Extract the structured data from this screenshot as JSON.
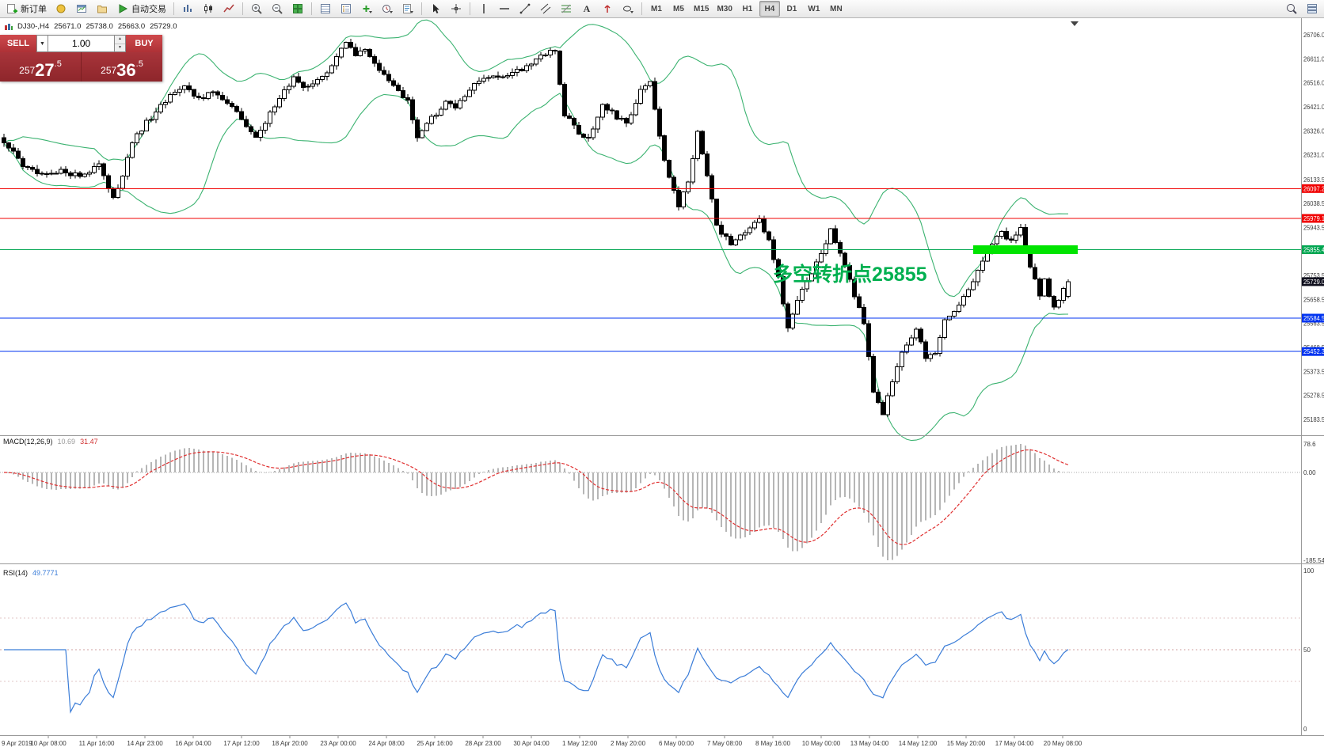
{
  "toolbar": {
    "new_order_label": "新订单",
    "auto_trading_label": "自动交易",
    "text_tool_label": "A",
    "timeframes": [
      "M1",
      "M5",
      "M15",
      "M30",
      "H1",
      "H4",
      "D1",
      "W1",
      "MN"
    ],
    "active_timeframe": "H4"
  },
  "symbol_bar": {
    "symbol": "DJ30-,H4",
    "open": "25671.0",
    "high": "25738.0",
    "low": "25663.0",
    "close": "25729.0"
  },
  "trade_widget": {
    "sell_label": "SELL",
    "buy_label": "BUY",
    "volume": "1.00",
    "sell_price": "25727.5",
    "buy_price": "25736.5"
  },
  "annotation": {
    "text": "多空转折点25855",
    "color": "#00b050"
  },
  "indicators": {
    "macd": {
      "name": "MACD(12,26,9)",
      "value_main": "10.69",
      "value_signal": "31.47",
      "axis_max": "78.6",
      "axis_zero": "0.00",
      "axis_min": "-185.54"
    },
    "rsi": {
      "name": "RSI(14)",
      "value": "49.7771",
      "axis_max": "100",
      "axis_mid": "50",
      "axis_min": "0"
    }
  },
  "price_axis_labels": [
    "26706.0",
    "26611.0",
    "26516.0",
    "26421.0",
    "26326.0",
    "26231.0",
    "26133.5",
    "26038.5",
    "25943.5",
    "25848.5",
    "25753.5",
    "25658.5",
    "25563.5",
    "25468.5",
    "25373.5",
    "25278.5",
    "25183.5"
  ],
  "time_axis_labels": [
    "9 Apr 2019",
    "10 Apr 08:00",
    "11 Apr 16:00",
    "14 Apr 23:00",
    "16 Apr 04:00",
    "17 Apr 12:00",
    "18 Apr 20:00",
    "23 Apr 00:00",
    "24 Apr 08:00",
    "25 Apr 16:00",
    "28 Apr 23:00",
    "30 Apr 04:00",
    "1 May 12:00",
    "2 May 20:00",
    "6 May 00:00",
    "7 May 08:00",
    "8 May 16:00",
    "10 May 00:00",
    "13 May 04:00",
    "14 May 12:00",
    "15 May 20:00",
    "17 May 04:00",
    "20 May 08:00"
  ],
  "chart_data": {
    "type": "candlestick",
    "symbol": "DJ30-",
    "timeframe": "H4",
    "bars": 225,
    "last_ohlc": {
      "open": 25671.0,
      "high": 25738.0,
      "low": 25663.0,
      "close": 25729.0
    },
    "visible_price_range": [
      25121,
      26771
    ],
    "macd_axis_range": [
      -185.54,
      78.6
    ],
    "rsi_axis_range": [
      0,
      100
    ],
    "bollinger_color": "#3cb371",
    "close_path_anchors": [
      [
        0,
        26285
      ],
      [
        4,
        26185
      ],
      [
        8,
        26155
      ],
      [
        12,
        26165
      ],
      [
        16,
        26150
      ],
      [
        20,
        26185
      ],
      [
        22,
        26100
      ],
      [
        23,
        26055
      ],
      [
        25,
        26150
      ],
      [
        27,
        26280
      ],
      [
        30,
        26360
      ],
      [
        33,
        26420
      ],
      [
        36,
        26480
      ],
      [
        38,
        26505
      ],
      [
        41,
        26455
      ],
      [
        44,
        26475
      ],
      [
        47,
        26440
      ],
      [
        50,
        26370
      ],
      [
        53,
        26310
      ],
      [
        56,
        26390
      ],
      [
        59,
        26490
      ],
      [
        61,
        26530
      ],
      [
        63,
        26495
      ],
      [
        66,
        26520
      ],
      [
        69,
        26575
      ],
      [
        72,
        26680
      ],
      [
        74,
        26615
      ],
      [
        76,
        26650
      ],
      [
        79,
        26565
      ],
      [
        82,
        26505
      ],
      [
        85,
        26445
      ],
      [
        87,
        26290
      ],
      [
        90,
        26375
      ],
      [
        93,
        26440
      ],
      [
        95,
        26415
      ],
      [
        98,
        26490
      ],
      [
        101,
        26540
      ],
      [
        104,
        26530
      ],
      [
        107,
        26550
      ],
      [
        110,
        26585
      ],
      [
        113,
        26620
      ],
      [
        116,
        26645
      ],
      [
        118,
        26390
      ],
      [
        121,
        26320
      ],
      [
        123,
        26295
      ],
      [
        126,
        26430
      ],
      [
        129,
        26380
      ],
      [
        131,
        26355
      ],
      [
        134,
        26480
      ],
      [
        136,
        26525
      ],
      [
        138,
        26300
      ],
      [
        140,
        26140
      ],
      [
        142,
        26030
      ],
      [
        144,
        26120
      ],
      [
        146,
        26330
      ],
      [
        148,
        26150
      ],
      [
        150,
        25950
      ],
      [
        153,
        25880
      ],
      [
        156,
        25925
      ],
      [
        159,
        25970
      ],
      [
        161,
        25900
      ],
      [
        163,
        25750
      ],
      [
        165,
        25550
      ],
      [
        168,
        25700
      ],
      [
        171,
        25800
      ],
      [
        174,
        25930
      ],
      [
        177,
        25785
      ],
      [
        180,
        25620
      ],
      [
        181,
        25560
      ],
      [
        183,
        25300
      ],
      [
        185,
        25210
      ],
      [
        187,
        25330
      ],
      [
        189,
        25440
      ],
      [
        192,
        25545
      ],
      [
        194,
        25420
      ],
      [
        196,
        25455
      ],
      [
        198,
        25570
      ],
      [
        201,
        25640
      ],
      [
        204,
        25720
      ],
      [
        207,
        25855
      ],
      [
        210,
        25920
      ],
      [
        212,
        25885
      ],
      [
        214,
        25935
      ],
      [
        216,
        25790
      ],
      [
        218,
        25680
      ],
      [
        219,
        25735
      ],
      [
        221,
        25620
      ],
      [
        223,
        25700
      ],
      [
        224,
        25729
      ]
    ],
    "horizontal_levels": [
      {
        "price": 26097.2,
        "label": "26097.2",
        "color": "#f00000",
        "style": "solid"
      },
      {
        "price": 25979.1,
        "label": "25979.1",
        "color": "#f00000",
        "style": "solid"
      },
      {
        "price": 25855.4,
        "label": "25855.4",
        "color": "#00a651",
        "style": "solid",
        "highlight_segment": {
          "from_bar": 204,
          "to_bar": 226,
          "thickness": 11,
          "color": "#00e400"
        }
      },
      {
        "price": 25729.0,
        "label": "25729.0",
        "color": "#10101e",
        "style": "tag-only",
        "role": "current-price"
      },
      {
        "price": 25584.5,
        "label": "25584.5",
        "color": "#0033f0",
        "style": "solid"
      },
      {
        "price": 25452.3,
        "label": "25452.3",
        "color": "#0033f0",
        "style": "solid"
      }
    ]
  }
}
